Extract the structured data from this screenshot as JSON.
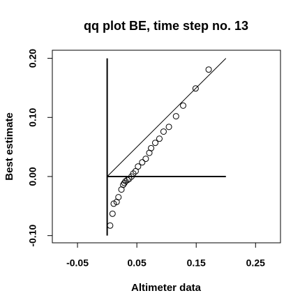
{
  "chart_data": {
    "type": "scatter",
    "title": "qq plot BE, time step no. 13",
    "x_label": "Altimeter data",
    "y_label": "Best estimate",
    "xlim": [
      -0.0924,
      0.292
    ],
    "ylim": [
      -0.1122,
      0.2137
    ],
    "xticks": [
      -0.05,
      0.05,
      0.15,
      0.25
    ],
    "yticks": [
      {
        "value": -0.1,
        "label": "-0.10"
      },
      {
        "value": 0,
        "label": "0.00"
      },
      {
        "value": 0.1,
        "label": "0.10"
      },
      {
        "value": 0.2,
        "label": "0.20"
      }
    ],
    "segments": [
      [
        0,
        -0.1,
        0,
        0.2
      ],
      [
        0,
        0,
        0.2,
        0
      ],
      [
        0,
        0,
        0.2,
        0.2
      ]
    ],
    "x": [
      0.005,
      0.009,
      0.011,
      0.016,
      0.019,
      0.024,
      0.027,
      0.029,
      0.031,
      0.034,
      0.037,
      0.041,
      0.044,
      0.048,
      0.052,
      0.059,
      0.065,
      0.071,
      0.074,
      0.081,
      0.088,
      0.095,
      0.104,
      0.116,
      0.128,
      0.149,
      0.171
    ],
    "y": [
      -0.083,
      -0.063,
      -0.046,
      -0.043,
      -0.035,
      -0.022,
      -0.014,
      -0.011,
      -0.008,
      -0.006,
      -0.004,
      0.0,
      0.005,
      0.009,
      0.017,
      0.024,
      0.03,
      0.04,
      0.048,
      0.057,
      0.064,
      0.076,
      0.084,
      0.102,
      0.12,
      0.149,
      0.181
    ]
  }
}
